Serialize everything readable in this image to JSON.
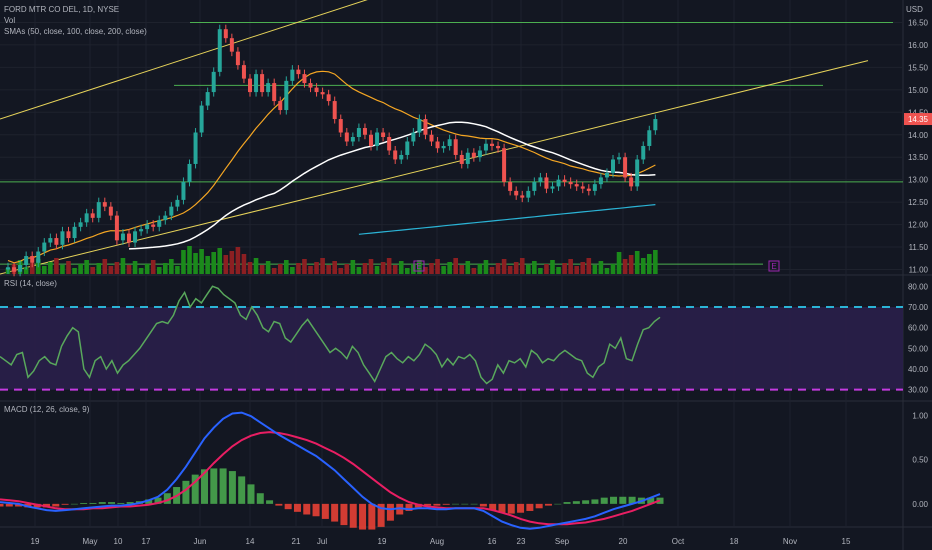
{
  "header": {
    "symbol": "FORD MTR CO DEL, 1D, NYSE",
    "volume_label": "Vol",
    "sma_label": "SMAs (50, close, 100, close, 200, close)",
    "currency": "USD"
  },
  "rsi_panel": {
    "label": "RSI (14, close)"
  },
  "macd_panel": {
    "label": "MACD (12, 26, close, 9)"
  },
  "colors": {
    "background": "#131722",
    "up": "#26a69a",
    "down": "#ef5350",
    "vol_up": "#1b8a1b",
    "vol_down": "#8c1f22",
    "sma50": "#f5a623",
    "sma100": "#ffffff",
    "sma200": "#2bb4d6",
    "channel": "#e6d35a",
    "level_line": "#4caf50",
    "rsi_line": "#59a85c",
    "rsi_band": "#2a1f4a",
    "rsi_dash_top": "#2bb4d6",
    "rsi_dash_bottom": "#c43be0",
    "macd_line": "#2962ff",
    "signal_line": "#e91e63",
    "price_badge": "#ef5350"
  },
  "chart_data": [
    {
      "type": "candlestick",
      "title": "FORD MTR CO DEL, 1D, NYSE",
      "x_ticks": [
        "19",
        "May",
        "10",
        "17",
        "Jun",
        "14",
        "21",
        "Jul",
        "19",
        "Aug",
        "16",
        "23",
        "Sep",
        "20",
        "Oct",
        "18",
        "Nov",
        "15"
      ],
      "y_ticks": [
        11.0,
        11.5,
        12.0,
        12.5,
        13.0,
        13.5,
        14.0,
        14.5,
        15.0,
        15.5,
        16.0,
        16.5
      ],
      "y_range": [
        10.9,
        17.0
      ],
      "close": [
        11.05,
        10.95,
        11.1,
        11.3,
        11.15,
        11.4,
        11.6,
        11.7,
        11.55,
        11.85,
        11.7,
        11.95,
        12.05,
        12.25,
        12.15,
        12.5,
        12.4,
        12.2,
        11.65,
        11.8,
        11.6,
        11.85,
        11.9,
        12.0,
        11.95,
        12.1,
        12.2,
        12.4,
        12.55,
        12.95,
        13.35,
        14.05,
        14.65,
        14.95,
        15.4,
        16.35,
        16.15,
        15.85,
        15.55,
        15.25,
        14.95,
        15.35,
        14.95,
        15.15,
        14.75,
        14.55,
        15.2,
        15.45,
        15.35,
        15.15,
        15.05,
        14.95,
        14.9,
        14.75,
        14.35,
        14.05,
        13.85,
        13.95,
        14.15,
        14.0,
        13.75,
        14.05,
        13.95,
        13.65,
        13.45,
        13.55,
        13.85,
        14.05,
        14.35,
        14.0,
        13.85,
        13.7,
        13.75,
        13.9,
        13.55,
        13.35,
        13.6,
        13.5,
        13.65,
        13.8,
        13.75,
        13.7,
        12.95,
        12.75,
        12.65,
        12.6,
        12.75,
        12.95,
        13.05,
        12.8,
        12.85,
        13.0,
        12.95,
        12.9,
        12.85,
        12.8,
        12.75,
        12.9,
        13.05,
        13.15,
        13.45,
        13.5,
        13.05,
        12.85,
        13.45,
        13.75,
        14.1,
        14.35
      ],
      "rsi": [
        46,
        44,
        42,
        47,
        48,
        36,
        39,
        44,
        46,
        43,
        42,
        51,
        56,
        60,
        58,
        40,
        36,
        44,
        46,
        40,
        44,
        38,
        42,
        44,
        47,
        50,
        54,
        58,
        62,
        63,
        62,
        66,
        73,
        77,
        70,
        74,
        72,
        76,
        80,
        79,
        76,
        74,
        72,
        66,
        64,
        70,
        66,
        60,
        58,
        63,
        62,
        55,
        53,
        57,
        61,
        64,
        60,
        56,
        52,
        48,
        50,
        48,
        45,
        51,
        48,
        42,
        38,
        34,
        40,
        46,
        48,
        45,
        43,
        46,
        44,
        47,
        52,
        50,
        47,
        41,
        45,
        42,
        46,
        45,
        47,
        44,
        36,
        33,
        35,
        42,
        38,
        44,
        43,
        45,
        41,
        49,
        47,
        43,
        45,
        44,
        47,
        49,
        47,
        45,
        44,
        38,
        36,
        41,
        43,
        52,
        50,
        55,
        45,
        44,
        52,
        59,
        60,
        63,
        65
      ],
      "rsi_levels": [
        70,
        30
      ],
      "rsi_range": [
        25,
        85
      ],
      "macd": [
        0.02,
        0.01,
        0.0,
        -0.03,
        -0.05,
        -0.07,
        -0.08,
        -0.07,
        -0.06,
        -0.05,
        -0.04,
        -0.03,
        -0.02,
        -0.02,
        -0.01,
        0.01,
        0.04,
        0.08,
        0.16,
        0.28,
        0.42,
        0.58,
        0.74,
        0.86,
        0.96,
        1.02,
        1.03,
        0.99,
        0.92,
        0.85,
        0.78,
        0.72,
        0.66,
        0.6,
        0.54,
        0.46,
        0.38,
        0.28,
        0.18,
        0.08,
        0.0,
        -0.05,
        -0.06,
        -0.05,
        -0.06,
        -0.05,
        -0.05,
        -0.06,
        -0.06,
        -0.05,
        -0.05,
        -0.05,
        -0.08,
        -0.14,
        -0.2,
        -0.24,
        -0.27,
        -0.28,
        -0.27,
        -0.25,
        -0.23,
        -0.21,
        -0.19,
        -0.17,
        -0.14,
        -0.1,
        -0.06,
        -0.03,
        0.0,
        0.03,
        0.07,
        0.11
      ],
      "signal": [
        0.05,
        0.04,
        0.03,
        0.01,
        -0.01,
        -0.03,
        -0.05,
        -0.06,
        -0.06,
        -0.06,
        -0.05,
        -0.05,
        -0.04,
        -0.03,
        -0.03,
        -0.02,
        -0.01,
        0.01,
        0.04,
        0.09,
        0.16,
        0.25,
        0.35,
        0.46,
        0.56,
        0.65,
        0.72,
        0.77,
        0.8,
        0.81,
        0.8,
        0.78,
        0.75,
        0.72,
        0.68,
        0.63,
        0.58,
        0.52,
        0.45,
        0.37,
        0.29,
        0.21,
        0.13,
        0.07,
        0.02,
        -0.01,
        -0.03,
        -0.04,
        -0.05,
        -0.05,
        -0.05,
        -0.05,
        -0.05,
        -0.07,
        -0.1,
        -0.13,
        -0.17,
        -0.2,
        -0.22,
        -0.23,
        -0.23,
        -0.23,
        -0.22,
        -0.21,
        -0.19,
        -0.17,
        -0.14,
        -0.11,
        -0.08,
        -0.04,
        0.0,
        0.04
      ],
      "macd_ticks": [
        0.0,
        0.5,
        1.0
      ],
      "macd_range": [
        -0.25,
        1.15
      ]
    }
  ]
}
